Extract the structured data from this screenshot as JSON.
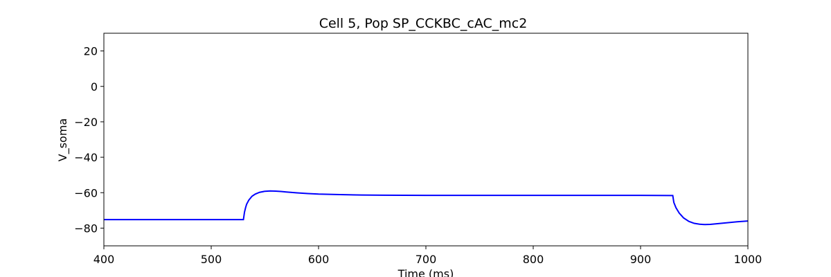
{
  "chart_data": {
    "type": "line",
    "title": "Cell 5, Pop SP_CCKBC_cAC_mc2",
    "xlabel": "Time (ms)",
    "ylabel": "V_soma",
    "xlim": [
      400,
      1000
    ],
    "ylim": [
      -90,
      30
    ],
    "xticks": [
      400,
      500,
      600,
      700,
      800,
      900,
      1000
    ],
    "yticks": [
      -80,
      -60,
      -40,
      -20,
      0,
      20
    ],
    "grid": false,
    "line_color": "#0000ff",
    "series": [
      {
        "x": [
          400,
          530,
          531,
          532,
          533,
          535,
          538,
          541,
          545,
          550,
          555,
          560,
          565,
          570,
          580,
          590,
          600,
          620,
          640,
          660,
          700,
          800,
          900,
          930,
          931,
          933,
          936,
          940,
          945,
          950,
          955,
          960,
          965,
          970,
          980,
          990,
          1000
        ],
        "y": [
          -75.2,
          -75.2,
          -71.0,
          -68.5,
          -66.5,
          -64.2,
          -62.0,
          -60.8,
          -59.8,
          -59.2,
          -59.0,
          -59.1,
          -59.3,
          -59.6,
          -60.1,
          -60.5,
          -60.8,
          -61.1,
          -61.3,
          -61.4,
          -61.5,
          -61.5,
          -61.5,
          -61.6,
          -65.5,
          -68.5,
          -71.5,
          -74.2,
          -76.2,
          -77.3,
          -77.8,
          -78.0,
          -77.9,
          -77.6,
          -77.0,
          -76.4,
          -76.0
        ]
      }
    ]
  }
}
